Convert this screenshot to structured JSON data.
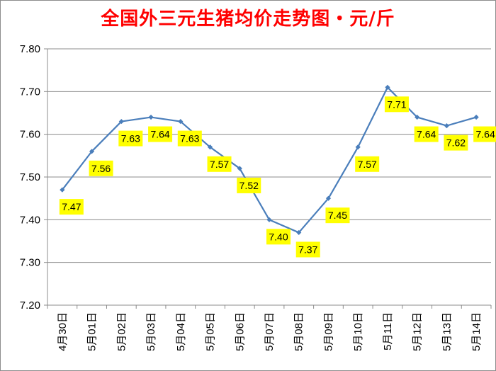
{
  "chart_data": {
    "type": "line",
    "title": "全国外三元生猪均价走势图・元/斤",
    "categories": [
      "4月30日",
      "5月01日",
      "5月02日",
      "5月03日",
      "5月04日",
      "5月05日",
      "5月06日",
      "5月07日",
      "5月08日",
      "5月09日",
      "5月10日",
      "5月11日",
      "5月12日",
      "5月13日",
      "5月14日"
    ],
    "series": [
      {
        "values": [
          7.47,
          7.56,
          7.63,
          7.64,
          7.63,
          7.57,
          7.52,
          7.4,
          7.37,
          7.45,
          7.57,
          7.71,
          7.64,
          7.62,
          7.64
        ]
      }
    ],
    "data_labels": [
      "7.47",
      "7.56",
      "7.63",
      "7.64",
      "7.63",
      "7.57",
      "7.52",
      "7.40",
      "7.37",
      "7.45",
      "7.57",
      "7.71",
      "7.64",
      "7.62",
      "7.64"
    ],
    "ylim": [
      7.2,
      7.8
    ],
    "yticks": [
      "7.20",
      "7.30",
      "7.40",
      "7.50",
      "7.60",
      "7.70",
      "7.80"
    ],
    "grid": true,
    "legend": "none",
    "colors": {
      "line": "#4a7ebb",
      "label_bg": "#ffff00",
      "title": "#ff0000",
      "grid": "#8c8c8c"
    }
  }
}
